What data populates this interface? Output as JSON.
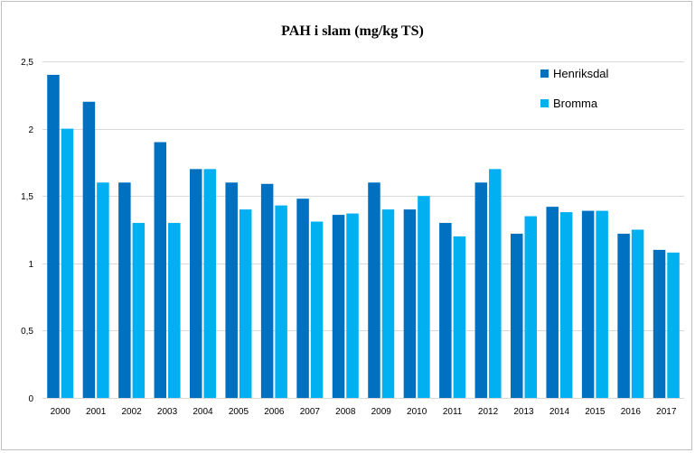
{
  "chart_data": {
    "type": "bar",
    "title": "PAH i slam (mg/kg TS)",
    "categories": [
      "2000",
      "2001",
      "2002",
      "2003",
      "2004",
      "2005",
      "2006",
      "2007",
      "2008",
      "2009",
      "2010",
      "2011",
      "2012",
      "2013",
      "2014",
      "2015",
      "2016",
      "2017"
    ],
    "series": [
      {
        "name": "Henriksdal",
        "color": "#0070c0",
        "values": [
          2.4,
          2.2,
          1.6,
          1.9,
          1.7,
          1.6,
          1.59,
          1.48,
          1.36,
          1.6,
          1.4,
          1.3,
          1.6,
          1.22,
          1.42,
          1.39,
          1.22,
          1.1
        ]
      },
      {
        "name": "Bromma",
        "color": "#00b0f0",
        "values": [
          2.0,
          1.6,
          1.3,
          1.3,
          1.7,
          1.4,
          1.43,
          1.31,
          1.37,
          1.4,
          1.5,
          1.2,
          1.7,
          1.35,
          1.38,
          1.39,
          1.25,
          1.08
        ]
      }
    ],
    "ylim": [
      0,
      2.5
    ],
    "yticks": [
      0,
      0.5,
      1,
      1.5,
      2,
      2.5
    ],
    "ytick_labels": [
      "0",
      "0,5",
      "1",
      "1,5",
      "2",
      "2,5"
    ],
    "xlabel": "",
    "ylabel": "",
    "grid": true,
    "grid_color": "#d9d9d9",
    "legend_placement": "top-right"
  }
}
